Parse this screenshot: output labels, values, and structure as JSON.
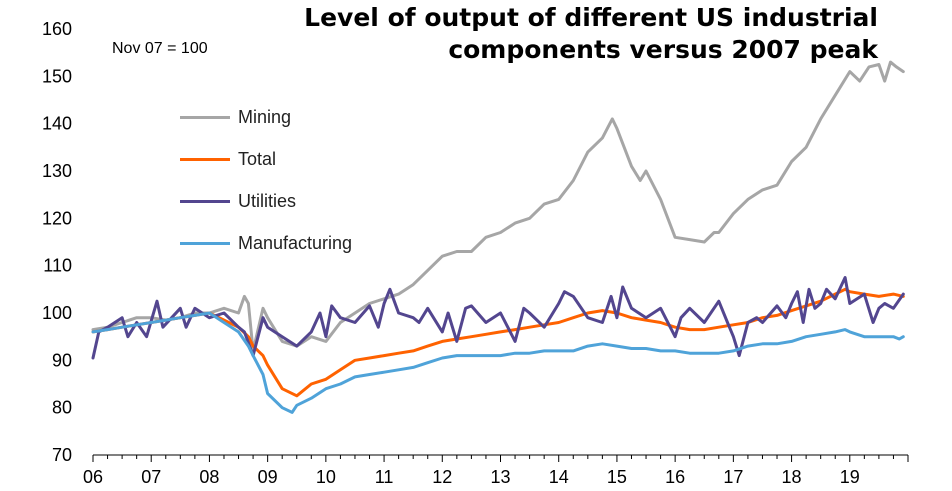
{
  "title_line1": "Level of output of different US industrial",
  "title_line2": "components versus 2007 peak",
  "subtitle": "Nov 07 = 100",
  "chart_data": {
    "type": "line",
    "title": "Level of output of different US industrial components versus 2007 peak",
    "subtitle": "Nov 07 = 100",
    "xlabel": "",
    "ylabel": "",
    "x_tick_labels": [
      "06",
      "07",
      "08",
      "09",
      "10",
      "11",
      "12",
      "13",
      "14",
      "15",
      "16",
      "17",
      "18",
      "19"
    ],
    "x_tick_years": [
      2006,
      2007,
      2008,
      2009,
      2010,
      2011,
      2012,
      2013,
      2014,
      2015,
      2016,
      2017,
      2018,
      2019
    ],
    "xlim": [
      2006,
      2020
    ],
    "ylim": [
      70,
      160
    ],
    "y_ticks": [
      70,
      80,
      90,
      100,
      110,
      120,
      130,
      140,
      150,
      160
    ],
    "grid": false,
    "legend_position": "upper-left",
    "series": [
      {
        "name": "Mining",
        "color": "#a6a6a6",
        "points": [
          [
            2006.0,
            96.5
          ],
          [
            2006.25,
            97
          ],
          [
            2006.5,
            98
          ],
          [
            2006.75,
            99
          ],
          [
            2007.0,
            99
          ],
          [
            2007.25,
            98.5
          ],
          [
            2007.5,
            99
          ],
          [
            2007.75,
            100
          ],
          [
            2008.0,
            100
          ],
          [
            2008.25,
            101
          ],
          [
            2008.5,
            100
          ],
          [
            2008.6,
            103.5
          ],
          [
            2008.67,
            102
          ],
          [
            2008.75,
            92
          ],
          [
            2008.92,
            101
          ],
          [
            2009.0,
            99
          ],
          [
            2009.25,
            94
          ],
          [
            2009.5,
            93
          ],
          [
            2009.75,
            95
          ],
          [
            2010.0,
            94
          ],
          [
            2010.25,
            98
          ],
          [
            2010.5,
            100
          ],
          [
            2010.75,
            102
          ],
          [
            2011.0,
            103
          ],
          [
            2011.25,
            104
          ],
          [
            2011.5,
            106
          ],
          [
            2011.75,
            109
          ],
          [
            2012.0,
            112
          ],
          [
            2012.25,
            113
          ],
          [
            2012.5,
            113
          ],
          [
            2012.75,
            116
          ],
          [
            2013.0,
            117
          ],
          [
            2013.25,
            119
          ],
          [
            2013.5,
            120
          ],
          [
            2013.75,
            123
          ],
          [
            2014.0,
            124
          ],
          [
            2014.25,
            128
          ],
          [
            2014.5,
            134
          ],
          [
            2014.75,
            137
          ],
          [
            2014.92,
            141
          ],
          [
            2015.0,
            139
          ],
          [
            2015.25,
            131
          ],
          [
            2015.4,
            128
          ],
          [
            2015.5,
            130
          ],
          [
            2015.75,
            124
          ],
          [
            2016.0,
            116
          ],
          [
            2016.25,
            115.5
          ],
          [
            2016.5,
            115
          ],
          [
            2016.67,
            117
          ],
          [
            2016.75,
            117
          ],
          [
            2017.0,
            121
          ],
          [
            2017.25,
            124
          ],
          [
            2017.5,
            126
          ],
          [
            2017.75,
            127
          ],
          [
            2018.0,
            132
          ],
          [
            2018.25,
            135
          ],
          [
            2018.5,
            141
          ],
          [
            2018.75,
            146
          ],
          [
            2019.0,
            151
          ],
          [
            2019.17,
            149
          ],
          [
            2019.33,
            152
          ],
          [
            2019.5,
            152.5
          ],
          [
            2019.6,
            149
          ],
          [
            2019.7,
            153
          ],
          [
            2019.8,
            152
          ],
          [
            2019.92,
            151
          ]
        ]
      },
      {
        "name": "Total",
        "color": "#ff6200",
        "points": [
          [
            2006.0,
            96
          ],
          [
            2006.25,
            96.5
          ],
          [
            2006.5,
            97
          ],
          [
            2006.75,
            97.5
          ],
          [
            2007.0,
            98
          ],
          [
            2007.25,
            98.5
          ],
          [
            2007.5,
            99
          ],
          [
            2007.75,
            99.5
          ],
          [
            2008.0,
            100
          ],
          [
            2008.25,
            98.5
          ],
          [
            2008.5,
            97
          ],
          [
            2008.67,
            95
          ],
          [
            2008.75,
            93
          ],
          [
            2008.92,
            91
          ],
          [
            2009.0,
            89
          ],
          [
            2009.25,
            84
          ],
          [
            2009.5,
            82.5
          ],
          [
            2009.75,
            85
          ],
          [
            2010.0,
            86
          ],
          [
            2010.25,
            88
          ],
          [
            2010.5,
            90
          ],
          [
            2010.75,
            90.5
          ],
          [
            2011.0,
            91
          ],
          [
            2011.25,
            91.5
          ],
          [
            2011.5,
            92
          ],
          [
            2011.75,
            93
          ],
          [
            2012.0,
            94
          ],
          [
            2012.25,
            94.5
          ],
          [
            2012.5,
            95
          ],
          [
            2012.75,
            95.5
          ],
          [
            2013.0,
            96
          ],
          [
            2013.25,
            96.5
          ],
          [
            2013.5,
            97
          ],
          [
            2013.75,
            97.5
          ],
          [
            2014.0,
            98
          ],
          [
            2014.25,
            99
          ],
          [
            2014.5,
            100
          ],
          [
            2014.75,
            100.5
          ],
          [
            2015.0,
            100
          ],
          [
            2015.25,
            99
          ],
          [
            2015.5,
            98.5
          ],
          [
            2015.75,
            98
          ],
          [
            2016.0,
            97
          ],
          [
            2016.25,
            96.5
          ],
          [
            2016.5,
            96.5
          ],
          [
            2016.75,
            97
          ],
          [
            2017.0,
            97.5
          ],
          [
            2017.25,
            98
          ],
          [
            2017.5,
            99
          ],
          [
            2017.75,
            99.5
          ],
          [
            2018.0,
            100.5
          ],
          [
            2018.25,
            101.5
          ],
          [
            2018.5,
            102.5
          ],
          [
            2018.75,
            104
          ],
          [
            2018.92,
            105
          ],
          [
            2019.0,
            104.5
          ],
          [
            2019.25,
            104
          ],
          [
            2019.5,
            103.5
          ],
          [
            2019.75,
            104
          ],
          [
            2019.92,
            103.5
          ]
        ]
      },
      {
        "name": "Utilities",
        "color": "#53468f",
        "points": [
          [
            2006.0,
            90.5
          ],
          [
            2006.1,
            96
          ],
          [
            2006.25,
            97
          ],
          [
            2006.5,
            99
          ],
          [
            2006.6,
            95
          ],
          [
            2006.75,
            98
          ],
          [
            2006.92,
            95
          ],
          [
            2007.1,
            102.5
          ],
          [
            2007.2,
            97
          ],
          [
            2007.5,
            101
          ],
          [
            2007.6,
            97
          ],
          [
            2007.75,
            101
          ],
          [
            2008.0,
            99
          ],
          [
            2008.25,
            100
          ],
          [
            2008.5,
            97
          ],
          [
            2008.6,
            96
          ],
          [
            2008.75,
            91
          ],
          [
            2008.92,
            99
          ],
          [
            2009.0,
            97
          ],
          [
            2009.25,
            95
          ],
          [
            2009.5,
            93
          ],
          [
            2009.75,
            96
          ],
          [
            2009.9,
            100
          ],
          [
            2010.0,
            95
          ],
          [
            2010.1,
            101.5
          ],
          [
            2010.25,
            99
          ],
          [
            2010.5,
            98
          ],
          [
            2010.75,
            101.5
          ],
          [
            2010.9,
            97
          ],
          [
            2011.0,
            102
          ],
          [
            2011.1,
            105
          ],
          [
            2011.25,
            100
          ],
          [
            2011.5,
            99
          ],
          [
            2011.6,
            98
          ],
          [
            2011.75,
            101
          ],
          [
            2012.0,
            96
          ],
          [
            2012.1,
            100
          ],
          [
            2012.25,
            94
          ],
          [
            2012.4,
            101
          ],
          [
            2012.5,
            101.5
          ],
          [
            2012.75,
            98
          ],
          [
            2013.0,
            100
          ],
          [
            2013.25,
            94
          ],
          [
            2013.4,
            101
          ],
          [
            2013.5,
            100
          ],
          [
            2013.75,
            97
          ],
          [
            2014.0,
            102
          ],
          [
            2014.1,
            104.5
          ],
          [
            2014.25,
            103.5
          ],
          [
            2014.5,
            99
          ],
          [
            2014.75,
            98
          ],
          [
            2014.9,
            103.5
          ],
          [
            2015.0,
            99
          ],
          [
            2015.1,
            105.5
          ],
          [
            2015.25,
            101
          ],
          [
            2015.5,
            99
          ],
          [
            2015.75,
            101
          ],
          [
            2016.0,
            95
          ],
          [
            2016.1,
            99
          ],
          [
            2016.25,
            101
          ],
          [
            2016.5,
            98
          ],
          [
            2016.75,
            102.5
          ],
          [
            2016.9,
            98
          ],
          [
            2017.0,
            95
          ],
          [
            2017.1,
            91
          ],
          [
            2017.25,
            98
          ],
          [
            2017.4,
            99
          ],
          [
            2017.5,
            98
          ],
          [
            2017.75,
            101.5
          ],
          [
            2017.9,
            99
          ],
          [
            2018.0,
            102
          ],
          [
            2018.1,
            104.5
          ],
          [
            2018.2,
            98
          ],
          [
            2018.3,
            105
          ],
          [
            2018.4,
            101
          ],
          [
            2018.5,
            102
          ],
          [
            2018.6,
            105
          ],
          [
            2018.75,
            103
          ],
          [
            2018.92,
            107.5
          ],
          [
            2019.0,
            102
          ],
          [
            2019.25,
            104
          ],
          [
            2019.4,
            98
          ],
          [
            2019.5,
            101
          ],
          [
            2019.6,
            102
          ],
          [
            2019.75,
            101
          ],
          [
            2019.92,
            104
          ]
        ]
      },
      {
        "name": "Manufacturing",
        "color": "#4fa3d9",
        "points": [
          [
            2006.0,
            96
          ],
          [
            2006.25,
            96.5
          ],
          [
            2006.5,
            97
          ],
          [
            2006.75,
            97.5
          ],
          [
            2007.0,
            98
          ],
          [
            2007.25,
            98.5
          ],
          [
            2007.5,
            99
          ],
          [
            2007.75,
            99.5
          ],
          [
            2008.0,
            100
          ],
          [
            2008.25,
            98
          ],
          [
            2008.5,
            96
          ],
          [
            2008.67,
            93
          ],
          [
            2008.75,
            91
          ],
          [
            2008.92,
            87
          ],
          [
            2009.0,
            83
          ],
          [
            2009.25,
            80
          ],
          [
            2009.42,
            79
          ],
          [
            2009.5,
            80.5
          ],
          [
            2009.75,
            82
          ],
          [
            2010.0,
            84
          ],
          [
            2010.25,
            85
          ],
          [
            2010.5,
            86.5
          ],
          [
            2010.75,
            87
          ],
          [
            2011.0,
            87.5
          ],
          [
            2011.25,
            88
          ],
          [
            2011.5,
            88.5
          ],
          [
            2011.75,
            89.5
          ],
          [
            2012.0,
            90.5
          ],
          [
            2012.25,
            91
          ],
          [
            2012.5,
            91
          ],
          [
            2012.75,
            91
          ],
          [
            2013.0,
            91
          ],
          [
            2013.25,
            91.5
          ],
          [
            2013.5,
            91.5
          ],
          [
            2013.75,
            92
          ],
          [
            2014.0,
            92
          ],
          [
            2014.25,
            92
          ],
          [
            2014.5,
            93
          ],
          [
            2014.75,
            93.5
          ],
          [
            2015.0,
            93
          ],
          [
            2015.25,
            92.5
          ],
          [
            2015.5,
            92.5
          ],
          [
            2015.75,
            92
          ],
          [
            2016.0,
            92
          ],
          [
            2016.25,
            91.5
          ],
          [
            2016.5,
            91.5
          ],
          [
            2016.75,
            91.5
          ],
          [
            2017.0,
            92
          ],
          [
            2017.25,
            93
          ],
          [
            2017.5,
            93.5
          ],
          [
            2017.75,
            93.5
          ],
          [
            2018.0,
            94
          ],
          [
            2018.25,
            95
          ],
          [
            2018.5,
            95.5
          ],
          [
            2018.75,
            96
          ],
          [
            2018.92,
            96.5
          ],
          [
            2019.0,
            96
          ],
          [
            2019.25,
            95
          ],
          [
            2019.5,
            95
          ],
          [
            2019.75,
            95
          ],
          [
            2019.85,
            94.5
          ],
          [
            2019.92,
            95
          ]
        ]
      }
    ]
  }
}
